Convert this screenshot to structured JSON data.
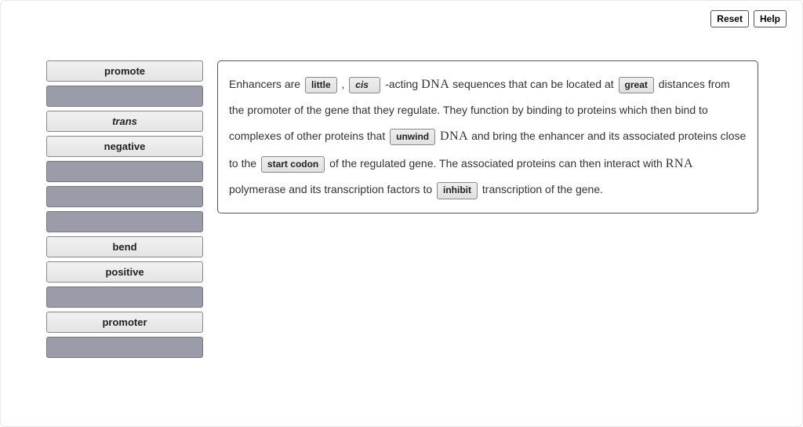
{
  "buttons": {
    "reset": "Reset",
    "help": "Help"
  },
  "wordBank": [
    {
      "label": "promote",
      "filled": true,
      "italic": false
    },
    {
      "label": "",
      "filled": false,
      "italic": false
    },
    {
      "label": "trans",
      "filled": true,
      "italic": true
    },
    {
      "label": "negative",
      "filled": true,
      "italic": false
    },
    {
      "label": "",
      "filled": false,
      "italic": false
    },
    {
      "label": "",
      "filled": false,
      "italic": false
    },
    {
      "label": "",
      "filled": false,
      "italic": false
    },
    {
      "label": "bend",
      "filled": true,
      "italic": false
    },
    {
      "label": "positive",
      "filled": true,
      "italic": false
    },
    {
      "label": "",
      "filled": false,
      "italic": false
    },
    {
      "label": "promoter",
      "filled": true,
      "italic": false
    },
    {
      "label": "",
      "filled": false,
      "italic": false
    }
  ],
  "sentence": {
    "t1": "Enhancers are ",
    "d1": "little",
    "t2": " , ",
    "d2": "cis",
    "t3": " -acting ",
    "s1": "DNA",
    "t4": " sequences that can be located at ",
    "d3": "great",
    "t5": " distances from the promoter of the gene that they regulate. They function by binding to proteins which then bind to complexes of other proteins that ",
    "d4": "unwind",
    "t6": " ",
    "s2": "DNA",
    "t7": " and bring the enhancer and its associated proteins close to the ",
    "d5": "start codon",
    "t8": " of the regulated gene. The associated proteins can then interact with ",
    "s3": "RNA",
    "t9": " polymerase and its transcription factors to ",
    "d6": "inhibit",
    "t10": " transcription of the gene."
  },
  "colors": {
    "panel_border": "#555555",
    "slot_empty_bg": "#9a9caa",
    "slot_filled_bg": "#e6e6e6",
    "text": "#333333"
  }
}
